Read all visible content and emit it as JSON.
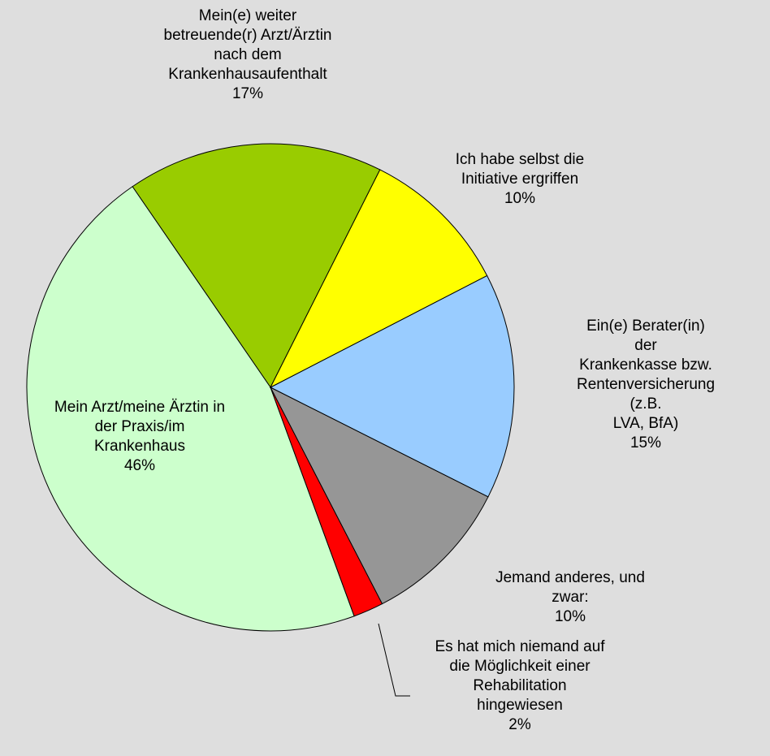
{
  "chart_data": {
    "type": "pie",
    "categories": [
      "Ich habe selbst die\nInitiative ergriffen",
      "Ein(e) Berater(in) der\nKrankenkasse bzw.\nRentenversicherung (z.B.\nLVA, BfA)",
      "Jemand anderes, und\nzwar:",
      "Es hat mich niemand auf\ndie Möglichkeit einer\nRehabilitation\nhingewiesen",
      "Mein Arzt/meine Ärztin in\nder Praxis/im\nKrankenhaus",
      "Mein(e) weiter\nbetreuende(r) Arzt/Ärztin\nnach dem\nKrankenhausaufenthalt"
    ],
    "values": [
      10,
      15,
      10,
      2,
      46,
      17
    ],
    "value_labels": [
      "10%",
      "15%",
      "10%",
      "2%",
      "46%",
      "17%"
    ],
    "colors": [
      "#ffff00",
      "#99ccff",
      "#969696",
      "#ff0000",
      "#ccffcc",
      "#99cc00"
    ]
  }
}
